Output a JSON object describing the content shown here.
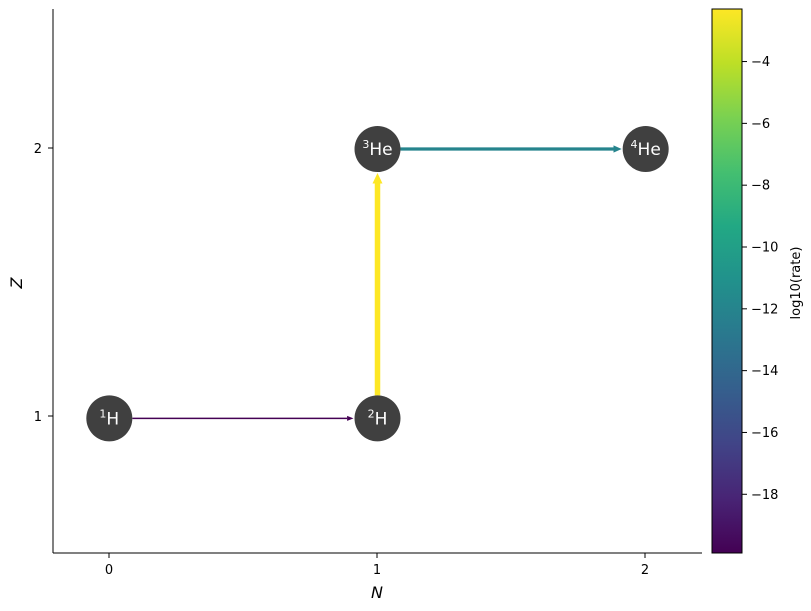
{
  "axes": {
    "xlabel": "N",
    "ylabel": "Z",
    "xticks": [
      0,
      1,
      2
    ],
    "yticks": [
      1,
      2
    ],
    "xlim": [
      -0.21,
      2.21
    ],
    "ylim": [
      0.5,
      2.52
    ]
  },
  "colorbar": {
    "label": "log10(rate)",
    "range": [
      -19.9,
      -2.3
    ],
    "ticks": [
      "−4",
      "−6",
      "−8",
      "−10",
      "−12",
      "−14",
      "−16",
      "−18"
    ],
    "tick_values": [
      -4,
      -6,
      -8,
      -10,
      -12,
      -14,
      -16,
      -18
    ],
    "colormap": "viridis",
    "colors": [
      "#440154",
      "#482475",
      "#414487",
      "#355f8d",
      "#2a788e",
      "#21918c",
      "#22a884",
      "#44bf70",
      "#7ad151",
      "#bddf26",
      "#fde725"
    ]
  },
  "nodes": [
    {
      "id": "h1",
      "sup": "1",
      "symbol": "H",
      "N": 0,
      "Z": 1
    },
    {
      "id": "h2",
      "sup": "2",
      "symbol": "H",
      "N": 1,
      "Z": 1
    },
    {
      "id": "he3",
      "sup": "3",
      "symbol": "He",
      "N": 1,
      "Z": 2
    },
    {
      "id": "he4",
      "sup": "4",
      "symbol": "He",
      "N": 2,
      "Z": 2
    }
  ],
  "node_color": "#404040",
  "links": [
    {
      "from": "h1",
      "to": "h2",
      "log10_rate": -19.9
    },
    {
      "from": "h2",
      "to": "he3",
      "log10_rate": -2.3
    },
    {
      "from": "he3",
      "to": "he4",
      "log10_rate": -12.0
    }
  ]
}
